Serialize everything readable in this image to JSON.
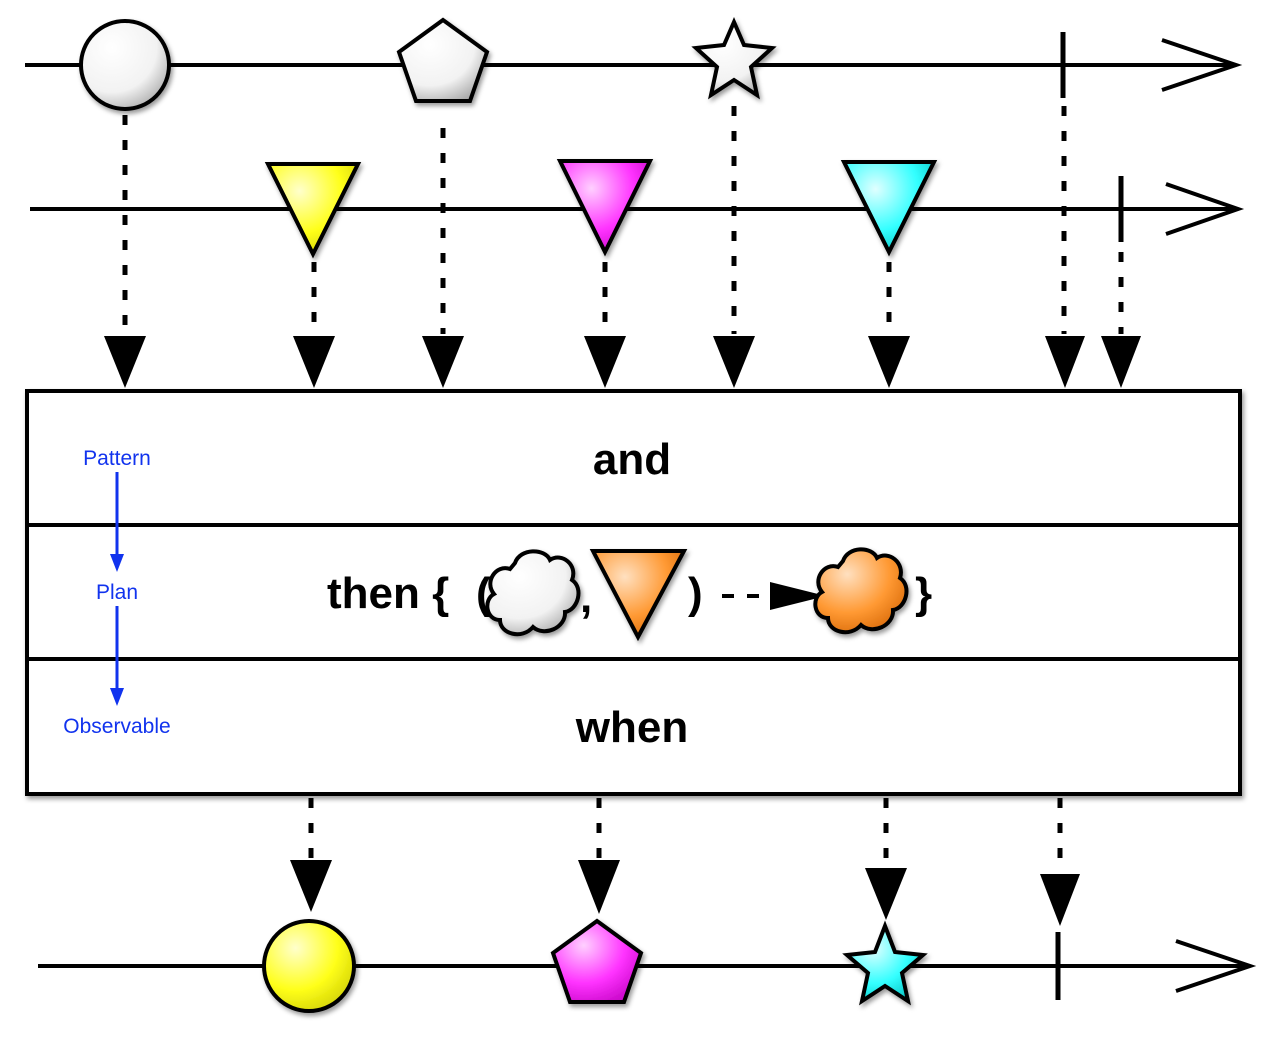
{
  "operator": {
    "rows": [
      "and",
      "then {",
      "when"
    ],
    "then_glyphs": {
      "open_paren": "(",
      "comma": ",",
      "close_paren": ")",
      "close_brace": "}"
    }
  },
  "side_labels": [
    "Pattern",
    "Plan",
    "Observable"
  ],
  "colors": {
    "ink": "#000000",
    "side_label": "#1133ee",
    "white": "#ffffff",
    "yellow": "#ffff1a",
    "magenta": "#ff33ff",
    "cyan": "#33ffff",
    "orange": "#ff9933"
  },
  "streams": {
    "input_a": {
      "items": [
        {
          "shape": "circle",
          "color": "white"
        },
        {
          "shape": "pentagon",
          "color": "white"
        },
        {
          "shape": "star",
          "color": "white"
        }
      ],
      "completes": true
    },
    "input_b": {
      "items": [
        {
          "shape": "triangle-down",
          "color": "yellow"
        },
        {
          "shape": "triangle-down",
          "color": "magenta"
        },
        {
          "shape": "triangle-down",
          "color": "cyan"
        }
      ],
      "completes": true
    },
    "output": {
      "items": [
        {
          "shape": "circle",
          "color": "yellow"
        },
        {
          "shape": "pentagon",
          "color": "magenta"
        },
        {
          "shape": "star",
          "color": "cyan"
        }
      ],
      "completes": true
    }
  }
}
